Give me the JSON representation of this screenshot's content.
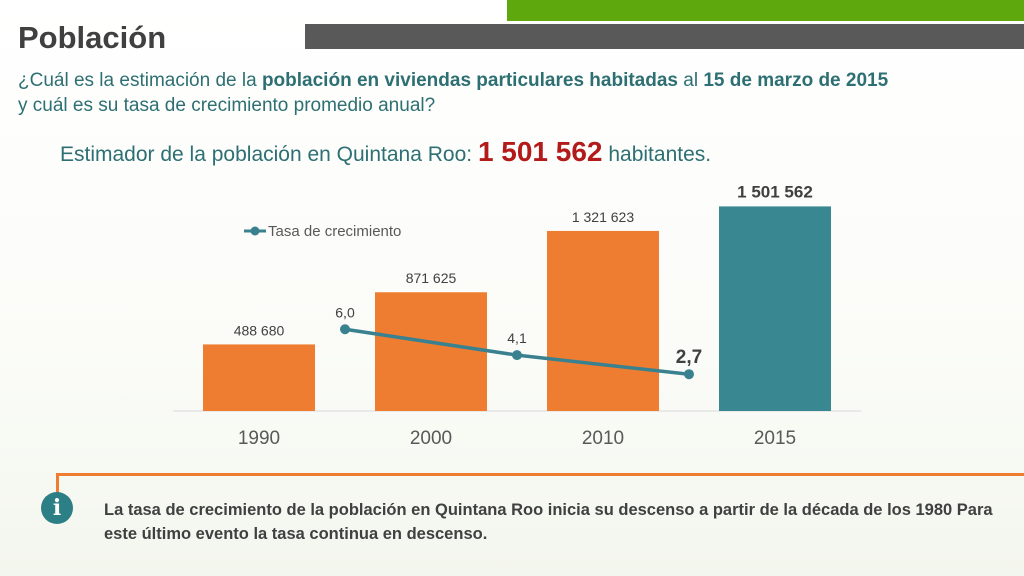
{
  "slide": {
    "title": "Población",
    "question": {
      "p1": "¿Cuál es la estimación de la ",
      "b1": "población en viviendas particulares habitadas",
      "p2": " al ",
      "b2": "15 de marzo de 2015",
      "p3": "y cuál es su tasa de crecimiento promedio anual?"
    },
    "estimate": {
      "prefix": "Estimador de la población en Quintana Roo: ",
      "value": "1 501 562",
      "suffix": " habitantes."
    },
    "info": {
      "icon_letter": "i",
      "text": "La tasa de crecimiento de la población en Quintana Roo inicia su descenso a partir de la década de los 1980 Para este último evento la tasa continua en descenso."
    }
  },
  "colors": {
    "bar": "#ee7d31",
    "bar_highlight": "#398791",
    "line": "#3a8190",
    "accent_green": "#5ea70c",
    "accent_gray": "#595959"
  },
  "chart_data": {
    "type": "bar",
    "categories": [
      "1990",
      "2000",
      "2010",
      "2015"
    ],
    "values": [
      488680,
      871625,
      1321623,
      1501562
    ],
    "value_labels": [
      "488 680",
      "871 625",
      "1 321 623",
      "1 501 562"
    ],
    "highlight_index": 3,
    "ylim": [
      0,
      1600000
    ],
    "grid": false,
    "legend": {
      "position": "top-left",
      "entries": [
        "Tasa de crecimiento"
      ]
    },
    "line_series": {
      "name": "Tasa de crecimiento",
      "x": [
        "2000",
        "2010",
        "2015"
      ],
      "values": [
        6.0,
        4.1,
        2.7
      ],
      "labels": [
        "6,0",
        "4,1",
        "2,7"
      ],
      "ylim": [
        0,
        16
      ]
    }
  }
}
